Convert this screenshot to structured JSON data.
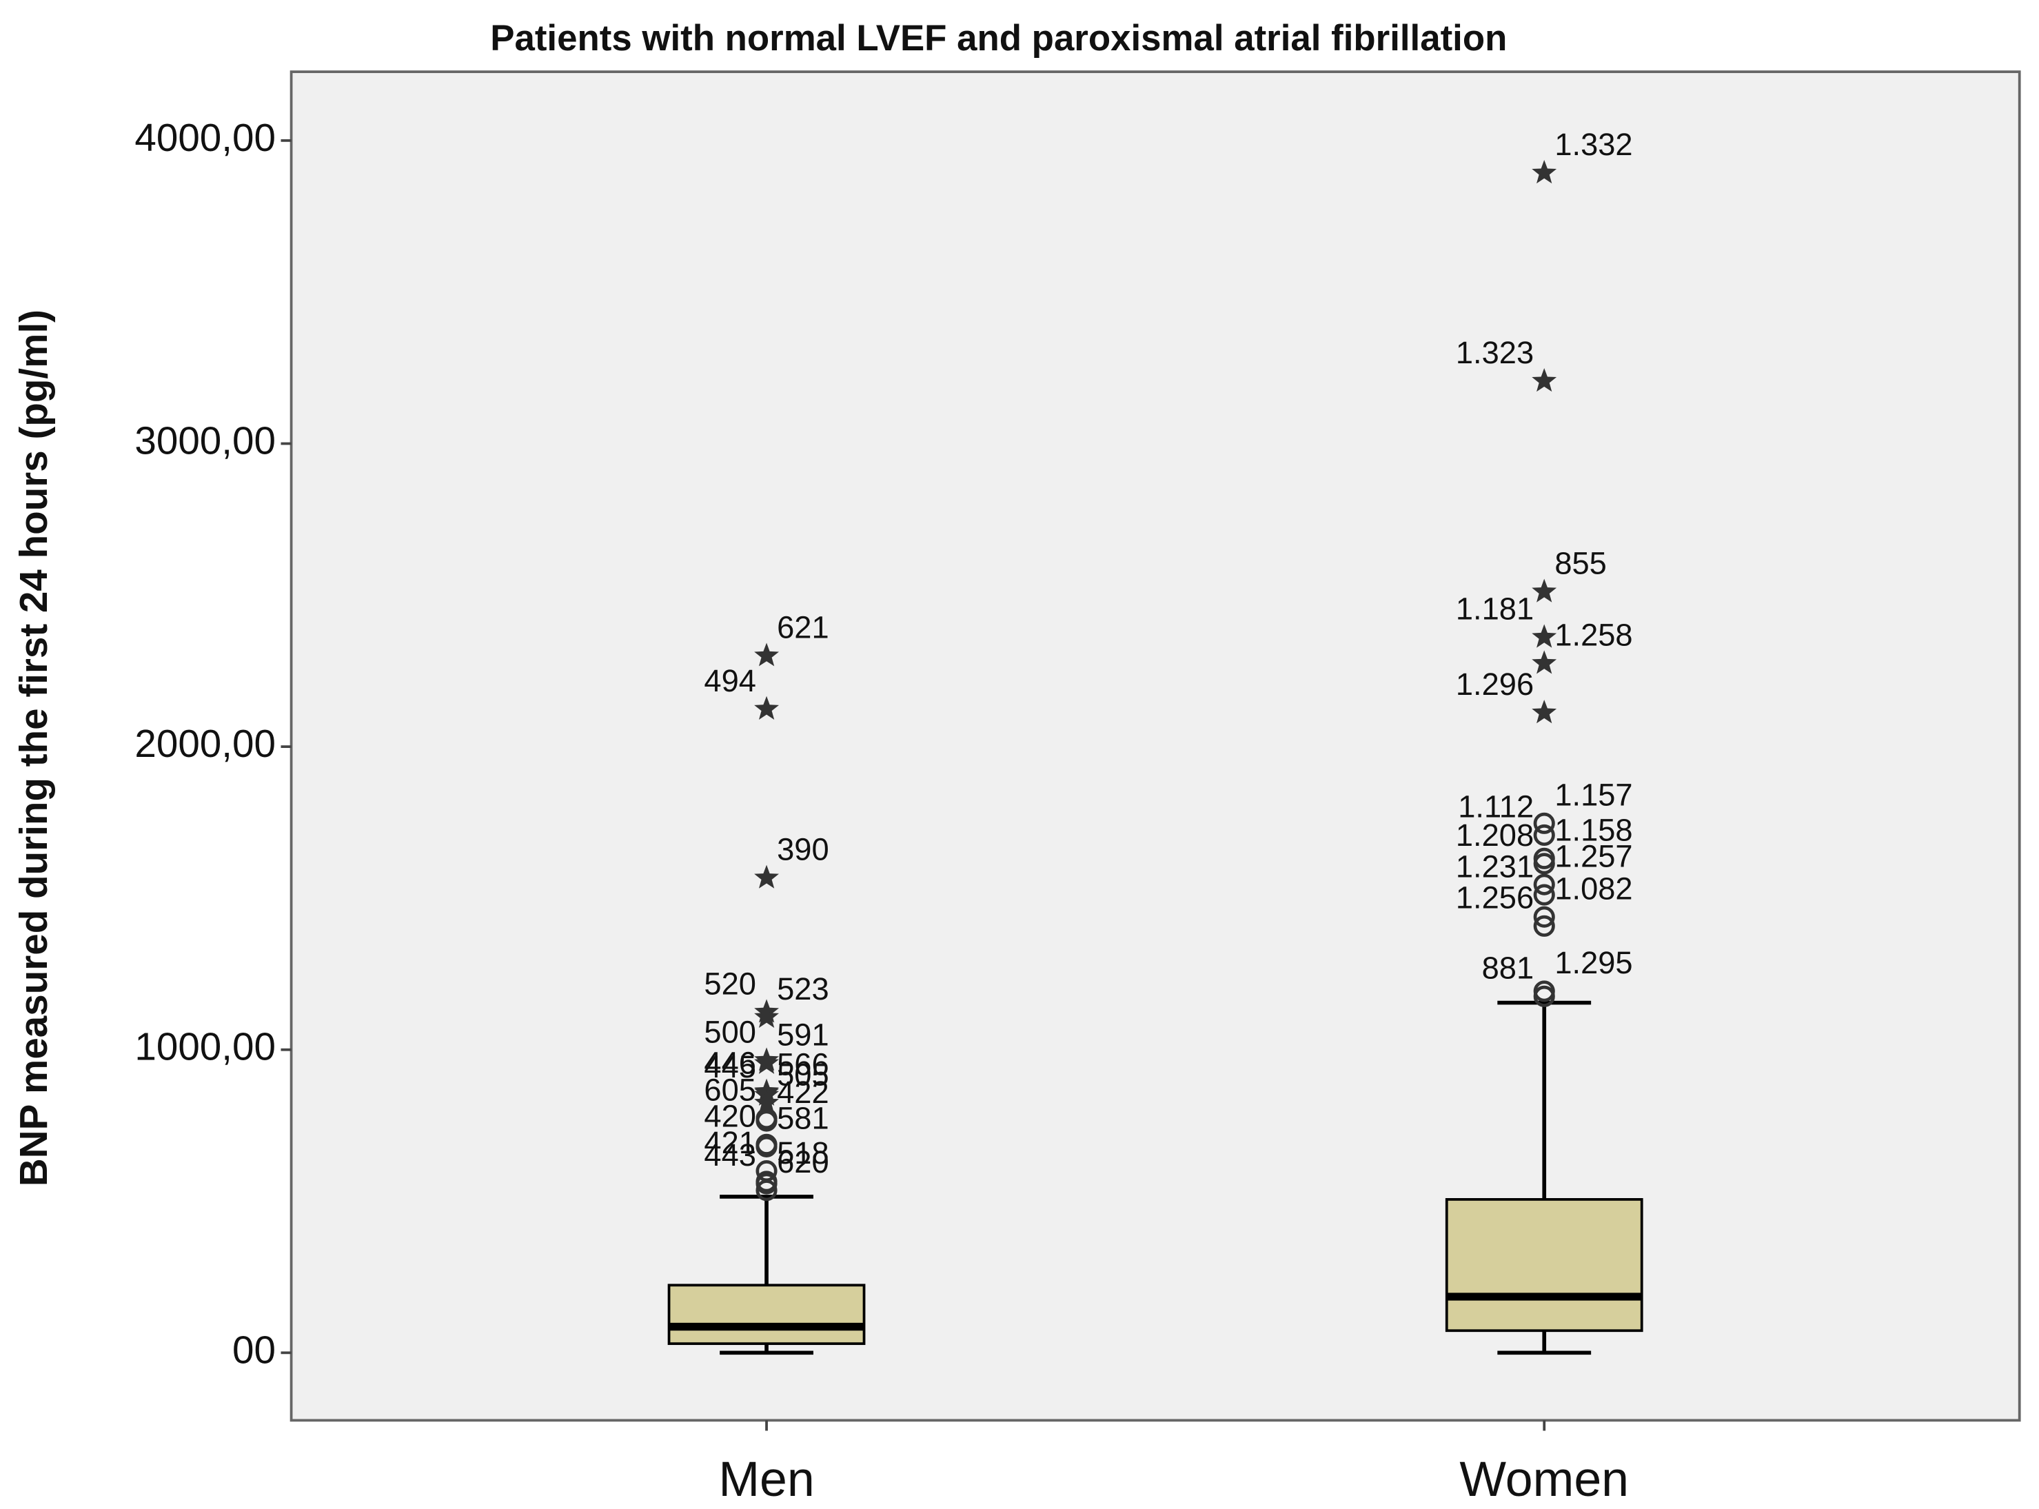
{
  "chart_data": {
    "type": "box",
    "title": "Patients with normal LVEF and paroxismal atrial fibrillation",
    "y_label": "BNP measured during the first 24 hours (pg/ml)",
    "categories": [
      "Men",
      "Women"
    ],
    "color": "#d6cf9c",
    "ylim": [
      -223,
      4227
    ],
    "yticks": [
      {
        "value": 0,
        "label": "00"
      },
      {
        "value": 1000,
        "label": "1000,00"
      },
      {
        "value": 2000,
        "label": "2000,00"
      },
      {
        "value": 3000,
        "label": "3000,00"
      },
      {
        "value": 4000,
        "label": "4000,00"
      }
    ],
    "boxes": [
      {
        "min": 0,
        "q1": 30,
        "median": 86,
        "q3": 223,
        "max": 515,
        "outliers": [
          {
            "value": 2300,
            "label": "621",
            "kind": "extreme"
          },
          {
            "value": 2124,
            "label": "494",
            "kind": "extreme"
          },
          {
            "value": 1567,
            "label": "390",
            "kind": "extreme"
          },
          {
            "value": 1124,
            "label": "520",
            "kind": "extreme"
          },
          {
            "value": 1107,
            "label": "523",
            "kind": "extreme"
          },
          {
            "value": 965,
            "label": "500",
            "kind": "extreme"
          },
          {
            "value": 955,
            "label": "591",
            "kind": "extreme"
          },
          {
            "value": 862,
            "label": "446",
            "kind": "extreme"
          },
          {
            "value": 858,
            "label": "566",
            "kind": "extreme"
          },
          {
            "value": 850,
            "label": "445",
            "kind": "extreme"
          },
          {
            "value": 824,
            "label": "505",
            "kind": "extreme"
          },
          {
            "value": 773,
            "label": "605",
            "kind": "outlier"
          },
          {
            "value": 765,
            "label": "422",
            "kind": "outlier"
          },
          {
            "value": 687,
            "label": "420",
            "kind": "outlier"
          },
          {
            "value": 680,
            "label": "581",
            "kind": "outlier"
          },
          {
            "value": 600,
            "label": "421",
            "kind": "outlier"
          },
          {
            "value": 565,
            "label": "518",
            "kind": "outlier"
          },
          {
            "value": 558,
            "label": "443",
            "kind": "outlier"
          },
          {
            "value": 536,
            "label": "620",
            "kind": "outlier"
          }
        ]
      },
      {
        "min": 0,
        "q1": 73,
        "median": 185,
        "q3": 506,
        "max": 1155,
        "outliers": [
          {
            "value": 3893,
            "label": "1.332",
            "kind": "extreme"
          },
          {
            "value": 3206,
            "label": "1.323",
            "kind": "extreme"
          },
          {
            "value": 2511,
            "label": "855",
            "kind": "extreme"
          },
          {
            "value": 2361,
            "label": "1.181",
            "kind": "extreme"
          },
          {
            "value": 2275,
            "label": "1.258",
            "kind": "extreme"
          },
          {
            "value": 2112,
            "label": "1.296",
            "kind": "extreme"
          },
          {
            "value": 1747,
            "label": "1.157",
            "kind": "outlier"
          },
          {
            "value": 1708,
            "label": "1.112",
            "kind": "outlier"
          },
          {
            "value": 1631,
            "label": "1.158",
            "kind": "outlier"
          },
          {
            "value": 1614,
            "label": "1.208",
            "kind": "outlier"
          },
          {
            "value": 1545,
            "label": "1.257",
            "kind": "outlier"
          },
          {
            "value": 1511,
            "label": "1.231",
            "kind": "outlier"
          },
          {
            "value": 1438,
            "label": "1.082",
            "kind": "outlier"
          },
          {
            "value": 1408,
            "label": "1.256",
            "kind": "outlier"
          },
          {
            "value": 1193,
            "label": "1.295",
            "kind": "outlier"
          },
          {
            "value": 1176,
            "label": "881",
            "kind": "outlier"
          }
        ]
      }
    ]
  }
}
